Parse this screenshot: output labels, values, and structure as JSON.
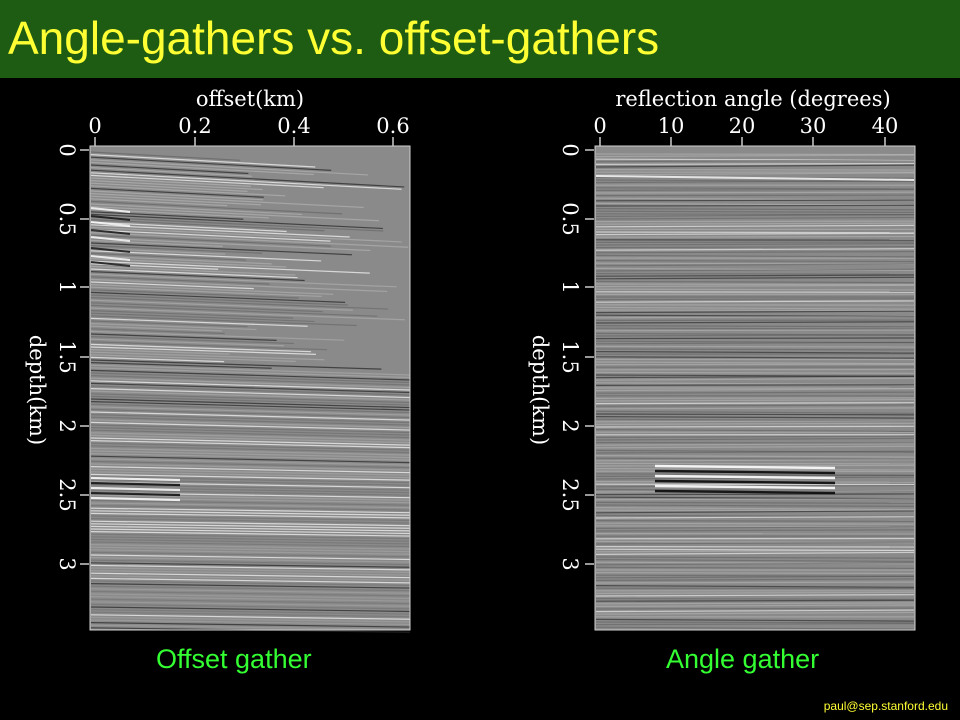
{
  "slide": {
    "title": "Angle-gathers vs. offset-gathers",
    "footer_email": "paul@sep.stanford.edu",
    "title_color": "#ffff33",
    "title_bg": "#1e5c14",
    "caption_color": "#33ff33"
  },
  "panels": [
    {
      "caption": "Offset gather",
      "xlabel": "offset(km)",
      "xticks": [
        "0",
        "0.2",
        "0.4",
        "0.6"
      ],
      "ylabel": "depth(km)",
      "yticks": [
        "0",
        "0.5",
        "1",
        "1.5",
        "2",
        "2.5",
        "3"
      ]
    },
    {
      "caption": "Angle gather",
      "xlabel": "reflection angle (degrees)",
      "xticks": [
        "0",
        "10",
        "20",
        "30",
        "40"
      ],
      "ylabel": "depth(km)",
      "yticks": [
        "0",
        "0.5",
        "1",
        "1.5",
        "2",
        "2.5",
        "3"
      ]
    }
  ]
}
